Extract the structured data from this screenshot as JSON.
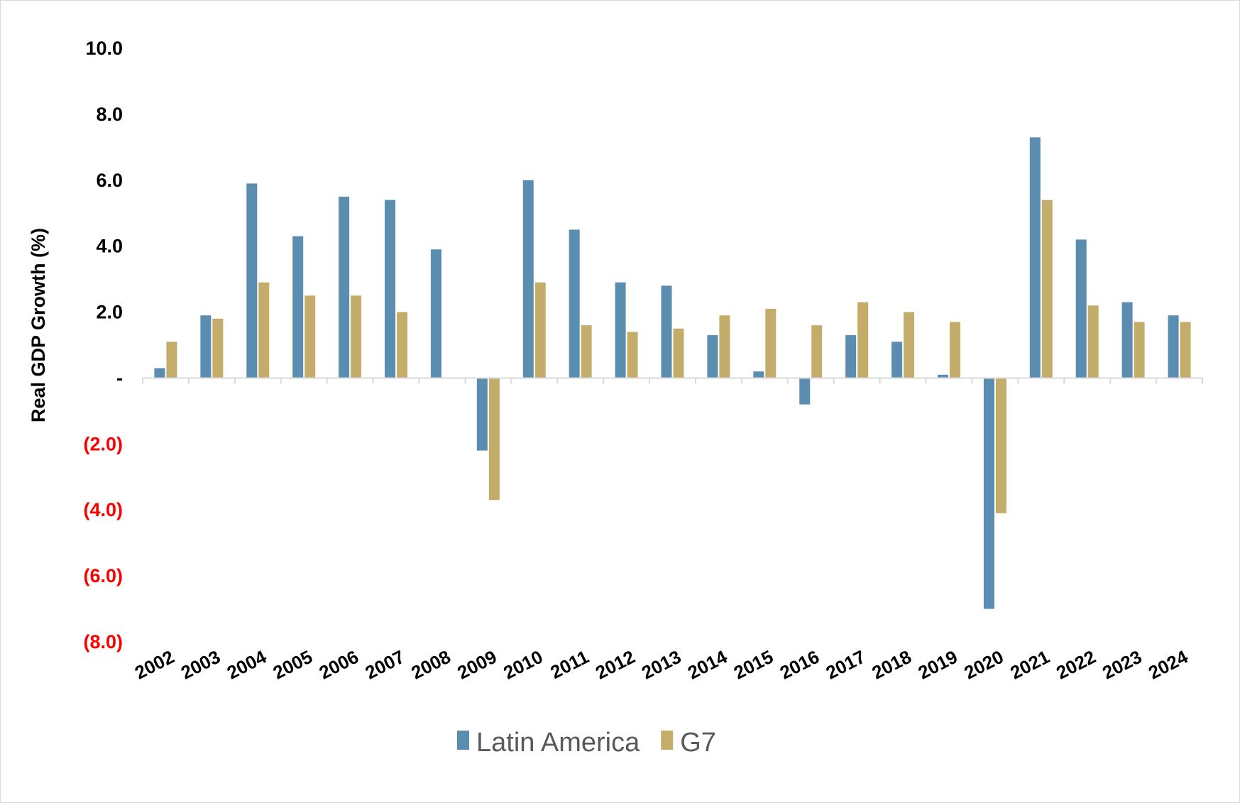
{
  "chart_data": {
    "type": "bar",
    "title": "",
    "xlabel": "",
    "ylabel": "Real GDP Growth (%)",
    "ylim": [
      -8,
      10
    ],
    "yticks": [
      {
        "value": 10,
        "label": "10.0"
      },
      {
        "value": 8,
        "label": "8.0"
      },
      {
        "value": 6,
        "label": "6.0"
      },
      {
        "value": 4,
        "label": "4.0"
      },
      {
        "value": 2,
        "label": "2.0"
      },
      {
        "value": 0,
        "label": "-"
      },
      {
        "value": -2,
        "label": "(2.0)"
      },
      {
        "value": -4,
        "label": "(4.0)"
      },
      {
        "value": -6,
        "label": "(6.0)"
      },
      {
        "value": -8,
        "label": "(8.0)"
      }
    ],
    "categories": [
      "2002",
      "2003",
      "2004",
      "2005",
      "2006",
      "2007",
      "2008",
      "2009",
      "2010",
      "2011",
      "2012",
      "2013",
      "2014",
      "2015",
      "2016",
      "2017",
      "2018",
      "2019",
      "2020",
      "2021",
      "2022",
      "2023",
      "2024"
    ],
    "series": [
      {
        "name": "Latin America",
        "color": "#5b8db0",
        "values": [
          0.3,
          1.9,
          5.9,
          4.3,
          5.5,
          5.4,
          3.9,
          -2.2,
          6.0,
          4.5,
          2.9,
          2.8,
          1.3,
          0.2,
          -0.8,
          1.3,
          1.1,
          0.1,
          -7.0,
          7.3,
          4.2,
          2.3,
          1.9
        ]
      },
      {
        "name": "G7",
        "color": "#c4ad6b",
        "values": [
          1.1,
          1.8,
          2.9,
          2.5,
          2.5,
          2.0,
          0.0,
          -3.7,
          2.9,
          1.6,
          1.4,
          1.5,
          1.9,
          2.1,
          1.6,
          2.3,
          2.0,
          1.7,
          -4.1,
          5.4,
          2.2,
          1.7,
          1.7
        ]
      }
    ],
    "legend_position": "bottom-center",
    "negative_label_color": "#ff0000",
    "grid": false
  }
}
